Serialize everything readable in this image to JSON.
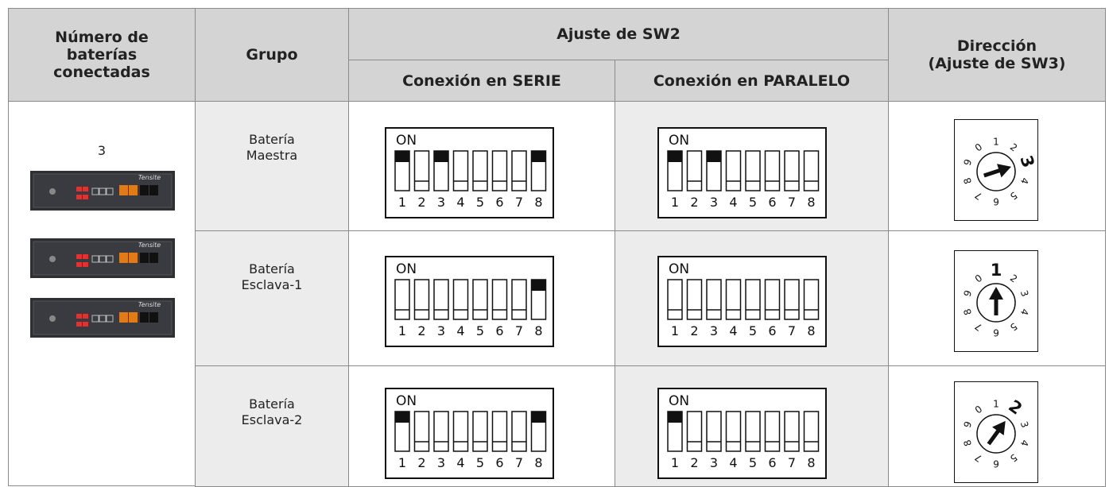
{
  "header": {
    "count": "Número de\nbaterías\nconectadas",
    "group": "Grupo",
    "sw2": "Ajuste de SW2",
    "serie": "Conexión en SERIE",
    "paralelo": "Conexión en PARALELO",
    "direction": "Dirección\n(Ajuste de SW3)"
  },
  "battery_count": "3",
  "battery_brand": "Tensite",
  "dip_on_label": "ON",
  "dip_numbers": [
    "1",
    "2",
    "3",
    "4",
    "5",
    "6",
    "7",
    "8"
  ],
  "dial_digits": [
    "0",
    "1",
    "2",
    "3",
    "4",
    "5",
    "6",
    "7",
    "8",
    "9"
  ],
  "rows": [
    {
      "group": "Batería\nMaestra",
      "serie": [
        1,
        0,
        1,
        0,
        0,
        0,
        0,
        1
      ],
      "paralelo": [
        1,
        0,
        1,
        0,
        0,
        0,
        0,
        0
      ],
      "sw3": 3
    },
    {
      "group": "Batería\nEsclava-1",
      "serie": [
        0,
        0,
        0,
        0,
        0,
        0,
        0,
        1
      ],
      "paralelo": [
        0,
        0,
        0,
        0,
        0,
        0,
        0,
        0
      ],
      "sw3": 1
    },
    {
      "group": "Batería\nEsclava-2",
      "serie": [
        1,
        0,
        0,
        0,
        0,
        0,
        0,
        1
      ],
      "paralelo": [
        1,
        0,
        0,
        0,
        0,
        0,
        0,
        0
      ],
      "sw3": 2
    }
  ]
}
